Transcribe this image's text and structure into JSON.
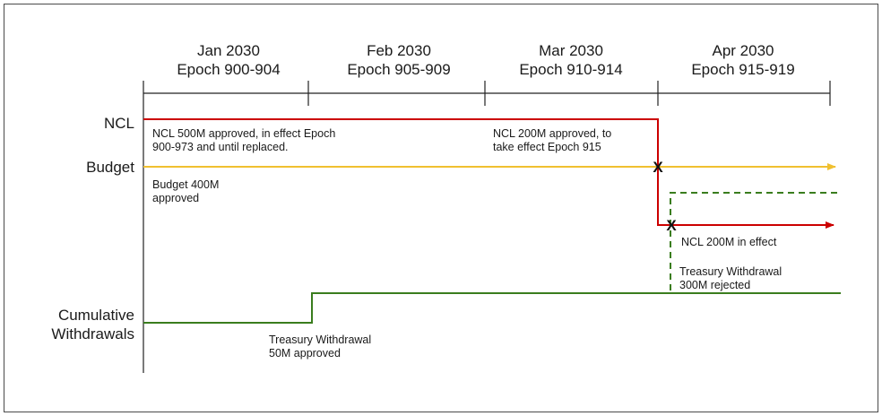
{
  "colors": {
    "ncl": "#cc0000",
    "budget": "#f0c030",
    "withdrawals": "#3a7d1e",
    "timeline": "#222222"
  },
  "periods": [
    {
      "month": "Jan 2030",
      "epochs": "Epoch 900-904"
    },
    {
      "month": "Feb 2030",
      "epochs": "Epoch 905-909"
    },
    {
      "month": "Mar 2030",
      "epochs": "Epoch 910-914"
    },
    {
      "month": "Apr 2030",
      "epochs": "Epoch 915-919"
    }
  ],
  "lanes": {
    "ncl": "NCL",
    "budget": "Budget",
    "withdrawals_line1": "Cumulative",
    "withdrawals_line2": "Withdrawals"
  },
  "annotations": {
    "ncl_500": {
      "line1": "NCL 500M approved, in effect Epoch",
      "line2": "900-973 and until replaced."
    },
    "ncl_200": {
      "line1": "NCL 200M approved, to",
      "line2": "take effect Epoch 915"
    },
    "budget_400": {
      "line1": "Budget 400M",
      "line2": "approved"
    },
    "ncl_effect": {
      "line1": "NCL 200M in effect"
    },
    "treasury_300": {
      "line1": "Treasury Withdrawal",
      "line2": "300M rejected"
    },
    "treasury_50": {
      "line1": "Treasury Withdrawal",
      "line2": "50M approved"
    }
  },
  "markers": {
    "budget_cross": "X",
    "ncl_cross": "X"
  }
}
